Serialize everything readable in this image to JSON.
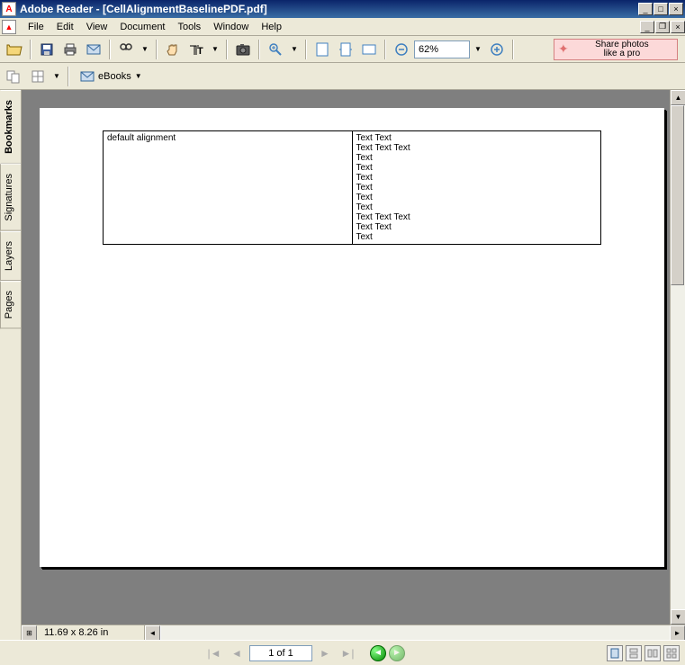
{
  "window": {
    "title": "Adobe Reader - [CellAlignmentBaselinePDF.pdf]"
  },
  "menu": {
    "items": [
      "File",
      "Edit",
      "View",
      "Document",
      "Tools",
      "Window",
      "Help"
    ]
  },
  "toolbar": {
    "zoom_value": "62%",
    "ebooks_label": "eBooks"
  },
  "promo": {
    "line1": "Share photos",
    "line2": "like a pro"
  },
  "sidebar": {
    "tabs": [
      "Bookmarks",
      "Signatures",
      "Layers",
      "Pages"
    ]
  },
  "document": {
    "paper_size": "11.69 x 8.26 in",
    "table": {
      "cell1": "default alignment",
      "cell2_lines": [
        "Text Text",
        "Text Text Text",
        "Text",
        "Text",
        "Text",
        "Text",
        "Text",
        "Text",
        "Text Text Text",
        "Text Text",
        "Text"
      ]
    }
  },
  "status": {
    "page_display": "1 of 1"
  },
  "colors": {
    "titlebar_start": "#0a246a",
    "titlebar_end": "#3a6ea5",
    "chrome_bg": "#ece9d8",
    "doc_bg": "#7f7f7f",
    "promo_bg": "#fcd9d9"
  }
}
